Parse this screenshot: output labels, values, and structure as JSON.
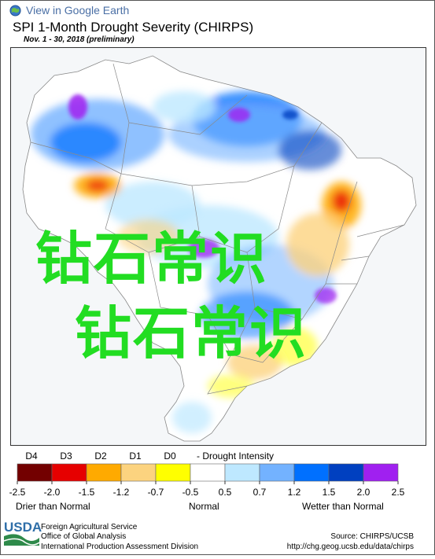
{
  "header": {
    "ge_link_label": "View in Google Earth",
    "title": "SPI 1-Month Drought Severity (CHIRPS)",
    "subtitle": "Nov. 1 - 30, 2018 (preliminary)"
  },
  "legend": {
    "intensity_codes": [
      "D4",
      "D3",
      "D2",
      "D1",
      "D0"
    ],
    "intensity_suffix": "- Drought Intensity",
    "ticks": [
      "-2.5",
      "-2.0",
      "-1.5",
      "-1.2",
      "-0.7",
      "-0.5",
      "0.5",
      "0.7",
      "1.2",
      "1.5",
      "2.0",
      "2.5"
    ],
    "colors": [
      "#730000",
      "#e60000",
      "#ffaa00",
      "#fcd37f",
      "#ffff00",
      "#ffffff",
      "#bee8ff",
      "#73b2ff",
      "#0070ff",
      "#0040c0",
      "#a020f0"
    ],
    "label_dry": "Drier than Normal",
    "label_normal": "Normal",
    "label_wet": "Wetter than Normal"
  },
  "footer": {
    "usda_logo": "USDA",
    "agency_line1": "Foreign Agricultural Service",
    "agency_line2": "Office of Global Analysis",
    "agency_line3": "International Production Assessment Division",
    "source_label": "Source: CHIRPS/UCSB",
    "source_url": "http://chg.geog.ucsb.edu/data/chirps"
  },
  "watermark": {
    "line1": "钻石常识",
    "line2": "钻石常识"
  }
}
